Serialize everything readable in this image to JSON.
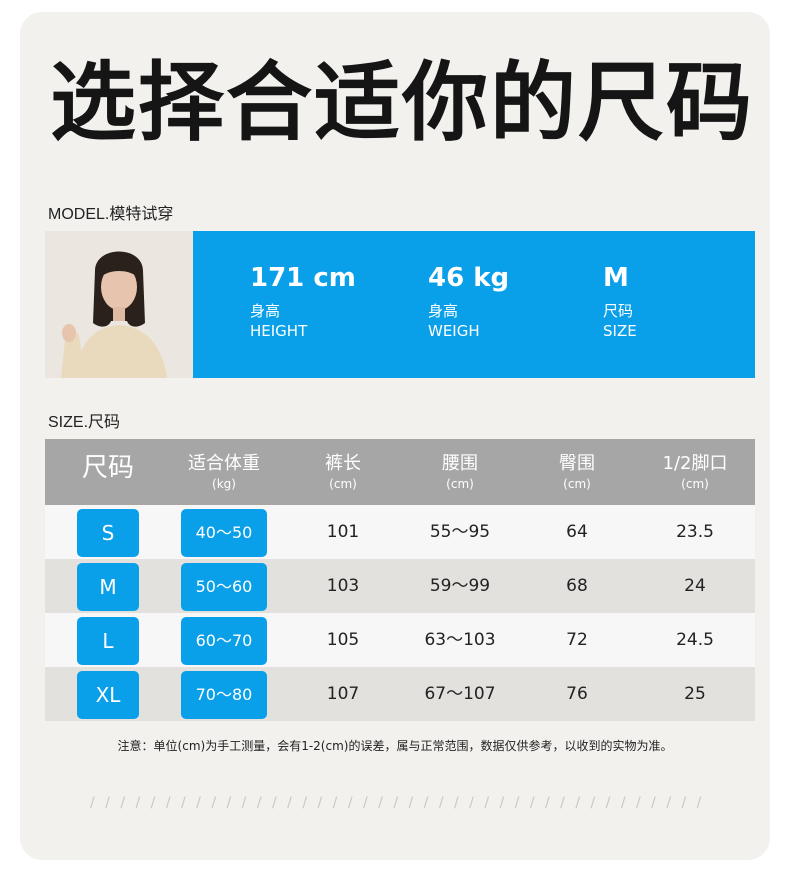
{
  "title": "选择合适你的尺码",
  "model_section": {
    "label": "MODEL.模特试穿",
    "stats": [
      {
        "value": "171 cm",
        "cn": "身高",
        "en": "HEIGHT"
      },
      {
        "value": "46 kg",
        "cn": "身高",
        "en": "WEIGH"
      },
      {
        "value": "M",
        "cn": "尺码",
        "en": "SIZE"
      }
    ]
  },
  "size_section": {
    "label": "SIZE.尺码",
    "headers": [
      {
        "title": "尺码",
        "unit": ""
      },
      {
        "title": "适合体重",
        "unit": "(kg)"
      },
      {
        "title": "裤长",
        "unit": "(cm)"
      },
      {
        "title": "腰围",
        "unit": "(cm)"
      },
      {
        "title": "臀围",
        "unit": "(cm)"
      },
      {
        "title": "1/2脚口",
        "unit": "(cm)"
      }
    ],
    "rows": [
      {
        "size": "S",
        "weight": "40～50",
        "length": "101",
        "waist": "55～95",
        "hip": "64",
        "hem": "23.5"
      },
      {
        "size": "M",
        "weight": "50～60",
        "length": "103",
        "waist": "59～99",
        "hip": "68",
        "hem": "24"
      },
      {
        "size": "L",
        "weight": "60～70",
        "length": "105",
        "waist": "63～103",
        "hip": "72",
        "hem": "24.5"
      },
      {
        "size": "XL",
        "weight": "70～80",
        "length": "107",
        "waist": "67～107",
        "hip": "76",
        "hem": "25"
      }
    ]
  },
  "note": "注意：单位(cm)为手工测量，会有1-2(cm)的误差，属与正常范围，数据仅供参考，以收到的实物为准。",
  "decor": "/ / / / / / / / / / / / / / / / / / / / / / / / / / / / / / / / / / / / / / / / / /",
  "colors": {
    "accent": "#0aa0e9",
    "header_bg": "#a6a6a6",
    "card_bg": "#f2f1ee"
  }
}
